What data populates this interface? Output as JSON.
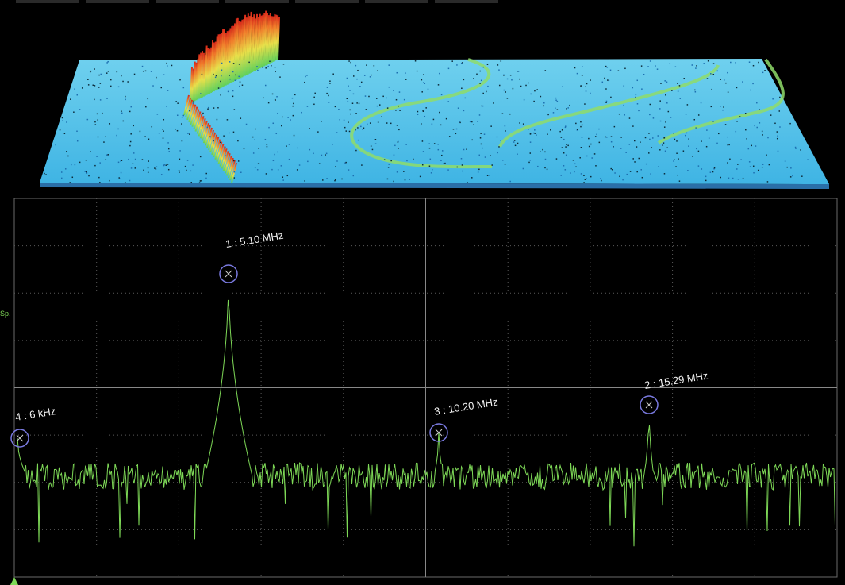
{
  "trace_label": "Sp.",
  "markers": [
    {
      "label": "1 : 5.10 MHz"
    },
    {
      "label": "2 : 15.29 MHz"
    },
    {
      "label": "3 : 10.20 MHz"
    },
    {
      "label": "4 : 6 kHz"
    }
  ]
}
